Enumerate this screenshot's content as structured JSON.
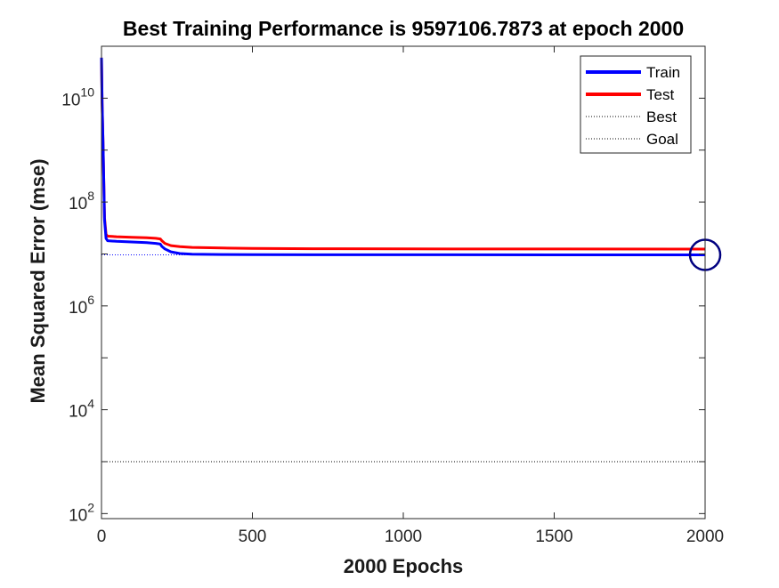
{
  "chart_data": {
    "type": "line",
    "title": "Best Training Performance is 9597106.7873 at epoch 2000",
    "xlabel": "2000 Epochs",
    "ylabel": "Mean Squared Error  (mse)",
    "xscale": "linear",
    "yscale": "log",
    "xlim": [
      0,
      2000
    ],
    "ylim": [
      80,
      100000000000
    ],
    "xticks": [
      0,
      500,
      1000,
      1500,
      2000
    ],
    "xtick_labels": [
      "0",
      "500",
      "1000",
      "1500",
      "2000"
    ],
    "yticks": [
      100,
      10000,
      1000000,
      100000000,
      10000000000
    ],
    "ytick_labels": [
      {
        "base": "10",
        "exp": "2"
      },
      {
        "base": "10",
        "exp": "4"
      },
      {
        "base": "10",
        "exp": "6"
      },
      {
        "base": "10",
        "exp": "8"
      },
      {
        "base": "10",
        "exp": "10"
      }
    ],
    "grid": false,
    "legend_position": "top-right",
    "series": [
      {
        "name": "Train",
        "color": "#0000ff",
        "style": "solid",
        "x": [
          0,
          2,
          5,
          8,
          10,
          15,
          20,
          50,
          100,
          150,
          180,
          195,
          200,
          210,
          230,
          260,
          300,
          400,
          500,
          700,
          1000,
          1500,
          2000
        ],
        "y": [
          60000000000,
          8000000000,
          1500000000,
          200000000,
          45000000,
          20000000,
          18000000,
          17500000,
          17000000,
          16500000,
          16000000,
          15500000,
          14000000,
          12500000,
          11000000,
          10200000,
          9900000,
          9750000,
          9700000,
          9660000,
          9630000,
          9610000,
          9597106.7873
        ]
      },
      {
        "name": "Test",
        "color": "#ff0000",
        "style": "solid",
        "x": [
          0,
          2,
          5,
          8,
          10,
          15,
          20,
          50,
          100,
          150,
          180,
          195,
          200,
          210,
          230,
          260,
          300,
          400,
          500,
          700,
          1000,
          1500,
          2000
        ],
        "y": [
          60000000000,
          8000000000,
          1500000000,
          200000000,
          50000000,
          24000000,
          22000000,
          21500000,
          21000000,
          20500000,
          20000000,
          19500000,
          18000000,
          16000000,
          14500000,
          13800000,
          13400000,
          13000000,
          12800000,
          12600000,
          12500000,
          12450000,
          12400000
        ]
      },
      {
        "name": "Best",
        "color": "#0000ff",
        "style": "dotted",
        "vertical_x": 2000,
        "horizontal_y": 9597106.7873
      },
      {
        "name": "Goal",
        "color": "#000000",
        "style": "dotted",
        "horizontal_y": 1000
      }
    ],
    "best_marker": {
      "x": 2000,
      "y": 9597106.7873,
      "color": "#000080"
    }
  }
}
